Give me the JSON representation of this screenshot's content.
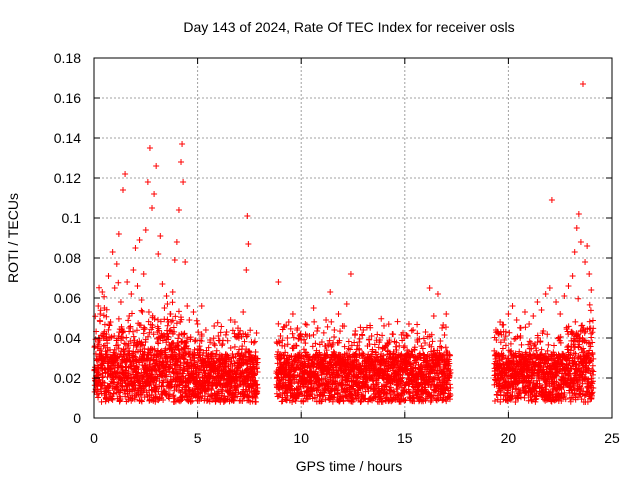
{
  "chart_data": {
    "type": "scatter",
    "title": "Day 143 of 2024, Rate Of TEC Index for receiver osls",
    "xlabel": "GPS time / hours",
    "ylabel": "ROTI / TECUs",
    "xlim": [
      0,
      25
    ],
    "ylim": [
      0,
      0.18
    ],
    "xticks": [
      0,
      5,
      10,
      15,
      20,
      25
    ],
    "yticks": [
      0,
      0.02,
      0.04,
      0.06,
      0.08,
      0.1,
      0.12,
      0.14,
      0.16,
      0.18
    ],
    "xtick_labels": [
      "0",
      "5",
      "10",
      "15",
      "20",
      "25"
    ],
    "ytick_labels": [
      "0",
      "0.02",
      "0.04",
      "0.06",
      "0.08",
      "0.1",
      "0.12",
      "0.14",
      "0.16",
      "0.18"
    ],
    "grid": true,
    "marker": "+",
    "color": "#ff0000",
    "data_gaps_hours": [
      [
        7.9,
        8.8
      ],
      [
        17.2,
        19.3
      ]
    ],
    "series": [
      {
        "name": "ROTI",
        "points": [
          [
            0.1,
            0.021
          ],
          [
            0.2,
            0.038
          ],
          [
            0.3,
            0.052
          ],
          [
            0.4,
            0.063
          ],
          [
            0.5,
            0.055
          ],
          [
            0.6,
            0.042
          ],
          [
            0.7,
            0.071
          ],
          [
            0.8,
            0.048
          ],
          [
            0.9,
            0.083
          ],
          [
            1.0,
            0.065
          ],
          [
            1.1,
            0.077
          ],
          [
            1.2,
            0.092
          ],
          [
            1.3,
            0.058
          ],
          [
            1.4,
            0.114
          ],
          [
            1.5,
            0.122
          ],
          [
            1.6,
            0.068
          ],
          [
            1.7,
            0.051
          ],
          [
            1.8,
            0.062
          ],
          [
            1.9,
            0.074
          ],
          [
            2.0,
            0.085
          ],
          [
            2.1,
            0.066
          ],
          [
            2.2,
            0.089
          ],
          [
            2.3,
            0.059
          ],
          [
            2.4,
            0.072
          ],
          [
            2.5,
            0.094
          ],
          [
            2.6,
            0.118
          ],
          [
            2.7,
            0.135
          ],
          [
            2.8,
            0.105
          ],
          [
            2.9,
            0.112
          ],
          [
            3.0,
            0.126
          ],
          [
            3.1,
            0.082
          ],
          [
            3.2,
            0.091
          ],
          [
            3.3,
            0.067
          ],
          [
            3.4,
            0.055
          ],
          [
            3.5,
            0.061
          ],
          [
            3.6,
            0.048
          ],
          [
            3.7,
            0.052
          ],
          [
            3.8,
            0.063
          ],
          [
            3.9,
            0.079
          ],
          [
            4.0,
            0.088
          ],
          [
            4.1,
            0.104
          ],
          [
            4.2,
            0.128
          ],
          [
            4.25,
            0.137
          ],
          [
            4.3,
            0.118
          ],
          [
            4.4,
            0.078
          ],
          [
            4.5,
            0.056
          ],
          [
            4.6,
            0.049
          ],
          [
            4.8,
            0.053
          ],
          [
            5.0,
            0.047
          ],
          [
            5.2,
            0.056
          ],
          [
            5.4,
            0.044
          ],
          [
            5.6,
            0.039
          ],
          [
            5.8,
            0.046
          ],
          [
            6.0,
            0.041
          ],
          [
            6.2,
            0.037
          ],
          [
            6.4,
            0.043
          ],
          [
            6.6,
            0.035
          ],
          [
            6.8,
            0.048
          ],
          [
            7.0,
            0.042
          ],
          [
            7.2,
            0.053
          ],
          [
            7.35,
            0.074
          ],
          [
            7.4,
            0.101
          ],
          [
            7.45,
            0.087
          ],
          [
            7.6,
            0.038
          ],
          [
            7.8,
            0.033
          ],
          [
            8.9,
            0.068
          ],
          [
            9.0,
            0.041
          ],
          [
            9.2,
            0.036
          ],
          [
            9.4,
            0.048
          ],
          [
            9.6,
            0.052
          ],
          [
            9.8,
            0.044
          ],
          [
            10.0,
            0.039
          ],
          [
            10.2,
            0.047
          ],
          [
            10.4,
            0.041
          ],
          [
            10.6,
            0.055
          ],
          [
            10.8,
            0.045
          ],
          [
            11.0,
            0.038
          ],
          [
            11.2,
            0.049
          ],
          [
            11.4,
            0.063
          ],
          [
            11.6,
            0.044
          ],
          [
            11.8,
            0.052
          ],
          [
            12.0,
            0.046
          ],
          [
            12.2,
            0.057
          ],
          [
            12.4,
            0.072
          ],
          [
            12.6,
            0.042
          ],
          [
            12.8,
            0.038
          ],
          [
            13.0,
            0.044
          ],
          [
            13.2,
            0.036
          ],
          [
            13.4,
            0.041
          ],
          [
            13.6,
            0.033
          ],
          [
            13.8,
            0.039
          ],
          [
            14.0,
            0.035
          ],
          [
            14.2,
            0.037
          ],
          [
            14.4,
            0.042
          ],
          [
            14.6,
            0.034
          ],
          [
            14.8,
            0.031
          ],
          [
            15.0,
            0.036
          ],
          [
            15.2,
            0.047
          ],
          [
            15.4,
            0.044
          ],
          [
            15.6,
            0.039
          ],
          [
            15.8,
            0.036
          ],
          [
            16.0,
            0.043
          ],
          [
            16.2,
            0.065
          ],
          [
            16.4,
            0.051
          ],
          [
            16.6,
            0.062
          ],
          [
            16.8,
            0.045
          ],
          [
            17.0,
            0.052
          ],
          [
            19.4,
            0.044
          ],
          [
            19.6,
            0.048
          ],
          [
            19.8,
            0.039
          ],
          [
            20.0,
            0.052
          ],
          [
            20.2,
            0.056
          ],
          [
            20.4,
            0.049
          ],
          [
            20.6,
            0.045
          ],
          [
            20.8,
            0.053
          ],
          [
            21.0,
            0.047
          ],
          [
            21.2,
            0.051
          ],
          [
            21.4,
            0.058
          ],
          [
            21.6,
            0.054
          ],
          [
            21.8,
            0.062
          ],
          [
            22.0,
            0.065
          ],
          [
            22.1,
            0.109
          ],
          [
            22.3,
            0.058
          ],
          [
            22.5,
            0.052
          ],
          [
            22.7,
            0.061
          ],
          [
            22.9,
            0.066
          ],
          [
            23.1,
            0.071
          ],
          [
            23.2,
            0.083
          ],
          [
            23.3,
            0.095
          ],
          [
            23.4,
            0.102
          ],
          [
            23.5,
            0.088
          ],
          [
            23.6,
            0.167
          ],
          [
            23.7,
            0.078
          ],
          [
            23.8,
            0.086
          ],
          [
            23.9,
            0.072
          ],
          [
            24.0,
            0.064
          ]
        ]
      }
    ]
  }
}
